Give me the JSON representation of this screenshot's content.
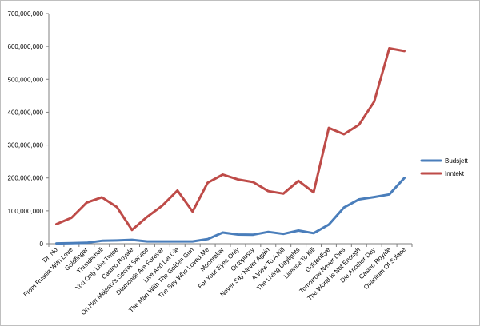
{
  "chart_data": {
    "type": "line",
    "categories": [
      "Dr. No",
      "From Russia With Love",
      "Goldfinger",
      "Thunderball",
      "You Only Live Twice",
      "Casino Royale",
      "On Her Majesty's Secret Service",
      "Diamonds Are Forever",
      "Live And Let Die",
      "The Man With The Golden Gun",
      "The Spy Who Loved Me",
      "Moonraker",
      "For Your Eyes Only",
      "Octopussy",
      "Never Say Never Again",
      "A View To A Kill",
      "The Living Daylights",
      "Licence To Kill",
      "GoldenEye",
      "Tomorrow Never Dies",
      "The World Is Not Enough",
      "Die Another Day",
      "Casino Royale",
      "Quantum Of Solace"
    ],
    "series": [
      {
        "name": "Budsjett",
        "color": "#4a7ebb",
        "values": [
          1000000,
          2000000,
          3000000,
          9000000,
          10000000,
          12000000,
          7000000,
          7000000,
          7000000,
          7000000,
          14000000,
          34000000,
          28000000,
          27500000,
          36000000,
          30000000,
          40000000,
          32000000,
          58000000,
          110000000,
          135000000,
          142000000,
          150000000,
          200000000
        ]
      },
      {
        "name": "Inntekt",
        "color": "#be4b48",
        "values": [
          59500000,
          78900000,
          124900000,
          141200000,
          111600000,
          41700000,
          82000000,
          116000000,
          161800000,
          97600000,
          185400000,
          210300000,
          195300000,
          187500000,
          160000000,
          152400000,
          191200000,
          156200000,
          352200000,
          333000000,
          361800000,
          432000000,
          594200000,
          586100000
        ]
      }
    ],
    "ylim": [
      0,
      700000000
    ],
    "yticks": [
      0,
      100000000,
      200000000,
      300000000,
      400000000,
      500000000,
      600000000,
      700000000
    ],
    "ytick_labels": [
      "0",
      "100,000,000",
      "200,000,000",
      "300,000,000",
      "400,000,000",
      "500,000,000",
      "600,000,000",
      "700,000,000"
    ],
    "legend_position": "right",
    "grid": false
  }
}
